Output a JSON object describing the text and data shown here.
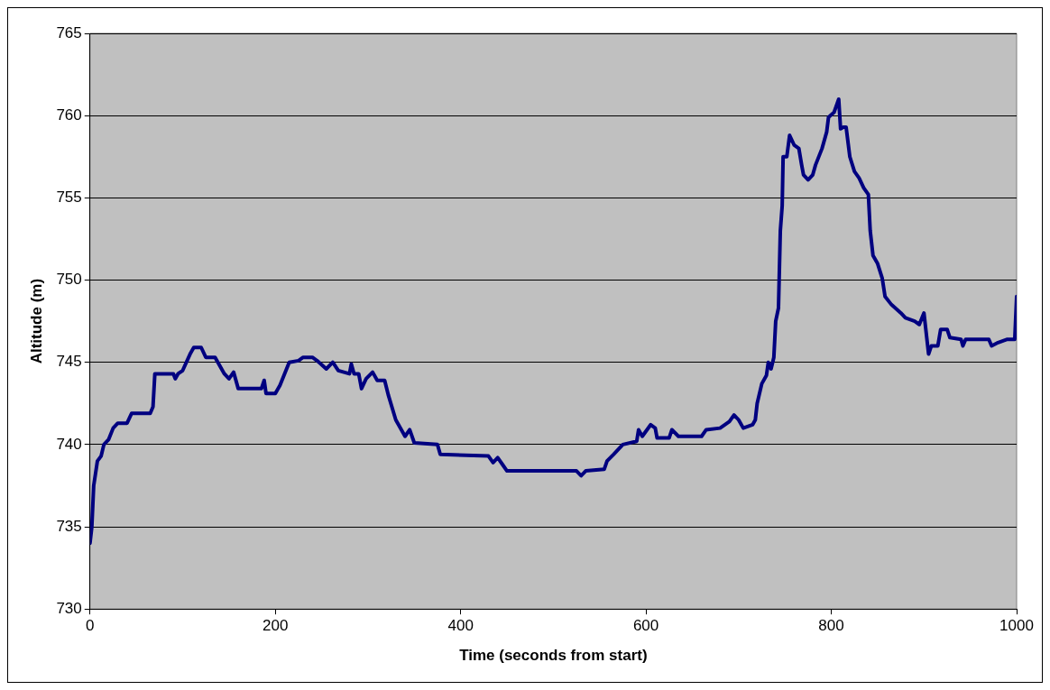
{
  "chart_data": {
    "type": "line",
    "xlabel": "Time (seconds from start)",
    "ylabel": "Altitude (m)",
    "xlim": [
      0,
      1000
    ],
    "xticks": [
      0,
      200,
      400,
      600,
      800,
      1000
    ],
    "ylim": [
      730,
      765
    ],
    "yticks": [
      730,
      735,
      740,
      745,
      750,
      755,
      760,
      765
    ],
    "grid": "y",
    "legend": false,
    "marker": "none",
    "line_style": "solid",
    "series": [
      {
        "color": "#000080",
        "x": [
          0,
          2,
          4,
          8,
          12,
          15,
          20,
          25,
          30,
          40,
          45,
          65,
          68,
          70,
          90,
          92,
          95,
          100,
          108,
          112,
          120,
          125,
          135,
          138,
          145,
          150,
          155,
          160,
          185,
          188,
          190,
          200,
          205,
          210,
          215,
          225,
          230,
          240,
          245,
          255,
          262,
          268,
          280,
          282,
          285,
          290,
          293,
          298,
          305,
          310,
          318,
          322,
          330,
          340,
          345,
          350,
          375,
          378,
          430,
          435,
          440,
          445,
          450,
          525,
          530,
          535,
          555,
          558,
          565,
          575,
          590,
          592,
          596,
          605,
          610,
          612,
          625,
          628,
          635,
          660,
          665,
          680,
          690,
          695,
          700,
          705,
          715,
          718,
          720,
          725,
          730,
          732,
          735,
          738,
          740,
          743,
          745,
          747,
          748,
          752,
          755,
          760,
          765,
          768,
          770,
          775,
          780,
          783,
          790,
          795,
          797,
          803,
          808,
          810,
          813,
          816,
          820,
          825,
          830,
          835,
          840,
          842,
          845,
          850,
          855,
          858,
          865,
          875,
          880,
          890,
          895,
          900,
          905,
          908,
          915,
          918,
          925,
          928,
          940,
          942,
          945,
          970,
          973,
          980,
          990,
          998,
          1000
        ],
        "values": [
          734,
          735,
          737.5,
          739,
          739.3,
          740,
          740.3,
          741,
          741.3,
          741.3,
          741.9,
          741.9,
          742.3,
          744.3,
          744.3,
          744,
          744.3,
          744.5,
          745.5,
          745.9,
          745.9,
          745.3,
          745.3,
          745,
          744.3,
          744,
          744.4,
          743.4,
          743.4,
          743.9,
          743.1,
          743.1,
          743.6,
          744.3,
          745,
          745.1,
          745.3,
          745.3,
          745.1,
          744.6,
          745,
          744.5,
          744.3,
          744.9,
          744.3,
          744.3,
          743.4,
          744,
          744.4,
          743.9,
          743.9,
          743,
          741.5,
          740.5,
          740.9,
          740.1,
          740,
          739.4,
          739.3,
          738.9,
          739.2,
          738.8,
          738.4,
          738.4,
          738.1,
          738.4,
          738.5,
          739,
          739.4,
          740,
          740.2,
          740.9,
          740.5,
          741.2,
          741,
          740.4,
          740.4,
          740.9,
          740.5,
          740.5,
          740.9,
          741,
          741.4,
          741.8,
          741.5,
          741,
          741.2,
          741.5,
          742.5,
          743.7,
          744.2,
          745,
          744.6,
          745.3,
          747.5,
          748.3,
          753,
          754.5,
          757.5,
          757.5,
          758.8,
          758.2,
          758,
          757,
          756.4,
          756.1,
          756.4,
          757,
          758,
          759,
          759.9,
          760.2,
          761,
          759.2,
          759.3,
          759.3,
          757.5,
          756.6,
          756.2,
          755.6,
          755.2,
          753,
          751.5,
          751,
          750.1,
          749,
          748.5,
          748,
          747.7,
          747.5,
          747.3,
          748,
          745.5,
          746,
          746,
          747,
          747,
          746.5,
          746.4,
          746,
          746.4,
          746.4,
          746,
          746.2,
          746.4,
          746.4,
          749
        ]
      }
    ]
  }
}
